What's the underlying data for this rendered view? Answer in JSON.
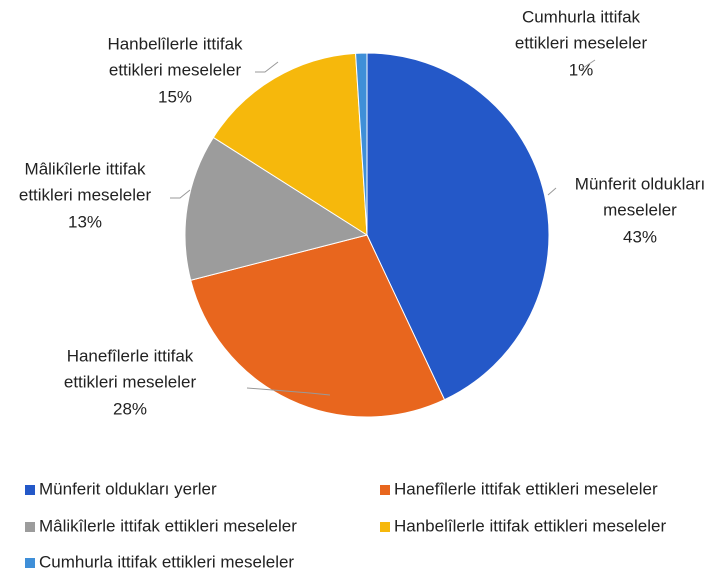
{
  "chart_data": {
    "type": "pie",
    "categories": [
      "Münferit oldukları yerler",
      "Hanefîlerle ittifak ettikleri meseleler",
      "Mâlikîlerle ittifak ettikleri meseleler",
      "Hanbelîlerle ittifak ettikleri meseleler",
      "Cumhurla ittifak ettikleri meseleler"
    ],
    "values": [
      43,
      28,
      13,
      15,
      1
    ],
    "value_labels": [
      "43%",
      "28%",
      "13%",
      "15%",
      "1%"
    ],
    "slice_labels": [
      [
        "Münferit oldukları",
        "meseleler"
      ],
      [
        "Hanefîlerle ittifak",
        "ettikleri meseleler"
      ],
      [
        "Mâlikîlerle ittifak",
        "ettikleri meseleler"
      ],
      [
        "Hanbelîlerle ittifak",
        "ettikleri meseleler"
      ],
      [
        "Cumhurla ittifak",
        "ettikleri meseleler"
      ]
    ],
    "colors": [
      "#2458c8",
      "#e8661e",
      "#9c9c9c",
      "#f6b80c",
      "#3f8fd8"
    ],
    "legend": "bottom"
  }
}
